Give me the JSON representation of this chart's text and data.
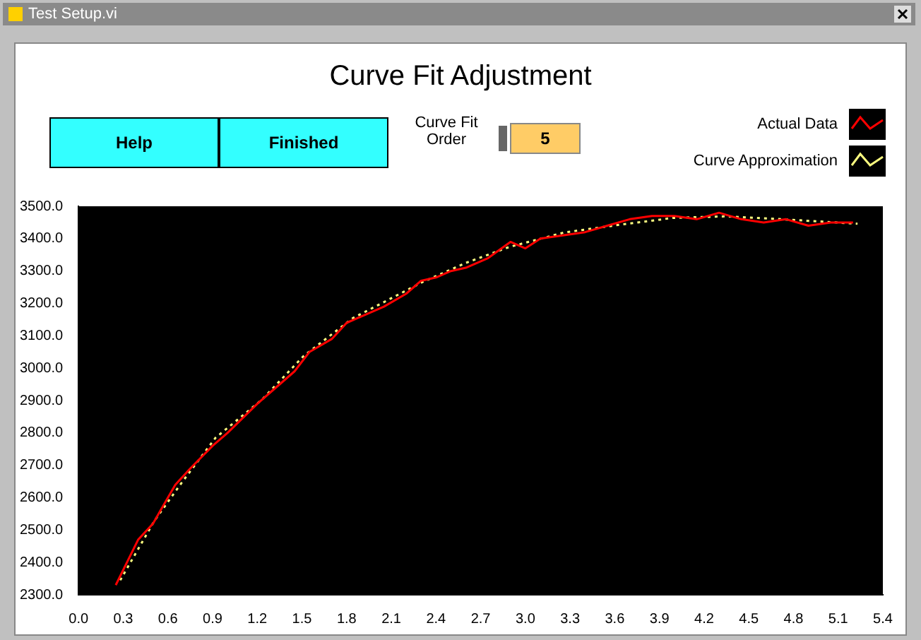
{
  "chart_data": {
    "type": "line",
    "title": "Curve Fit Adjustment",
    "annotations": [
      "Test Setup.vi",
      "Help",
      "Finished",
      "Curve Fit Order",
      "5"
    ],
    "legend": "top right",
    "grid": false,
    "marker": "none",
    "xlim": [
      0,
      5.4
    ],
    "xticks": [
      {
        "value": 0,
        "label": "0.0"
      },
      {
        "value": 0.3,
        "label": "0.3"
      },
      {
        "value": 0.6,
        "label": "0.6"
      },
      {
        "value": 0.9,
        "label": "0.9"
      },
      {
        "value": 1.2,
        "label": "1.2"
      },
      {
        "value": 1.5,
        "label": "1.5"
      },
      {
        "value": 1.8,
        "label": "1.8"
      },
      {
        "value": 2.1,
        "label": "2.1"
      },
      {
        "value": 2.4,
        "label": "2.4"
      },
      {
        "value": 2.7,
        "label": "2.7"
      },
      {
        "value": 3,
        "label": "3.0"
      },
      {
        "value": 3.3,
        "label": "3.3"
      },
      {
        "value": 3.6,
        "label": "3.6"
      },
      {
        "value": 3.9,
        "label": "3.9"
      },
      {
        "value": 4.2,
        "label": "4.2"
      },
      {
        "value": 4.5,
        "label": "4.5"
      },
      {
        "value": 4.8,
        "label": "4.8"
      },
      {
        "value": 5.1,
        "label": "5.1"
      },
      {
        "value": 5.4,
        "label": "5.4"
      }
    ],
    "ylim": [
      2300,
      3500
    ],
    "yticks": [
      {
        "value": 2300,
        "label": "2300.0"
      },
      {
        "value": 2400,
        "label": "2400.0"
      },
      {
        "value": 2500,
        "label": "2500.0"
      },
      {
        "value": 2600,
        "label": "2600.0"
      },
      {
        "value": 2700,
        "label": "2700.0"
      },
      {
        "value": 2800,
        "label": "2800.0"
      },
      {
        "value": 2900,
        "label": "2900.0"
      },
      {
        "value": 3000,
        "label": "3000.0"
      },
      {
        "value": 3100,
        "label": "3100.0"
      },
      {
        "value": 3200,
        "label": "3200.0"
      },
      {
        "value": 3300,
        "label": "3300.0"
      },
      {
        "value": 3400,
        "label": "3400.0"
      },
      {
        "value": 3500,
        "label": "3500.0"
      }
    ],
    "series": [
      {
        "name": "Actual Data",
        "color": "#ff0000",
        "line_style": "solid",
        "x": [
          0.25,
          0.4,
          0.5,
          0.55,
          0.65,
          0.75,
          0.9,
          1.0,
          1.2,
          1.3,
          1.45,
          1.55,
          1.7,
          1.8,
          1.9,
          2.05,
          2.2,
          2.3,
          2.4,
          2.5,
          2.6,
          2.75,
          2.9,
          3.0,
          3.1,
          3.25,
          3.4,
          3.55,
          3.7,
          3.85,
          4.0,
          4.15,
          4.3,
          4.45,
          4.6,
          4.75,
          4.9,
          5.05,
          5.2
        ],
        "values": [
          2330,
          2470,
          2520,
          2560,
          2640,
          2690,
          2760,
          2800,
          2890,
          2930,
          2990,
          3050,
          3090,
          3140,
          3160,
          3190,
          3230,
          3270,
          3280,
          3300,
          3310,
          3340,
          3390,
          3370,
          3400,
          3410,
          3420,
          3440,
          3460,
          3470,
          3470,
          3460,
          3480,
          3460,
          3450,
          3460,
          3440,
          3450,
          3450
        ]
      },
      {
        "name": "Curve Approximation",
        "color": "#ffff80",
        "line_style": "dotted",
        "x": [
          0.28,
          0.51,
          0.7,
          0.92,
          1.23,
          1.51,
          1.84,
          2.31,
          2.6,
          2.89,
          3.26,
          3.62,
          3.99,
          4.35,
          4.72,
          5.23
        ],
        "values": [
          2345,
          2529,
          2651,
          2785,
          2902,
          3037,
          3154,
          3266,
          3325,
          3374,
          3419,
          3442,
          3464,
          3469,
          3460,
          3446
        ]
      }
    ]
  }
}
